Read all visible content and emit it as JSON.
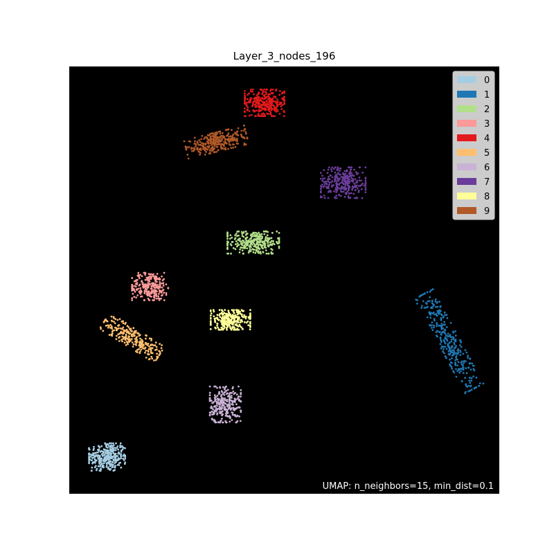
{
  "chart_data": {
    "type": "scatter",
    "title": "Layer_3_nodes_196",
    "annotation": "UMAP: n_neighbors=15, min_dist=0.1",
    "xlabel": "",
    "ylabel": "",
    "xlim": [
      0,
      100
    ],
    "ylim": [
      0,
      100
    ],
    "background": "#000000",
    "grid": false,
    "legend_position": "top-right",
    "series": [
      {
        "name": "0",
        "color": "#a6cee3",
        "center": [
          8.8,
          8.6
        ],
        "spread": [
          4.2,
          3.2
        ],
        "angle": 0,
        "n": 320
      },
      {
        "name": "1",
        "color": "#1f78b4",
        "center": [
          88.3,
          35.7
        ],
        "spread": [
          2.4,
          12.5
        ],
        "angle": 28,
        "n": 320
      },
      {
        "name": "2",
        "color": "#b2df8a",
        "center": [
          42.8,
          58.8
        ],
        "spread": [
          6.0,
          2.6
        ],
        "angle": 0,
        "n": 300
      },
      {
        "name": "3",
        "color": "#fb9a99",
        "center": [
          18.8,
          48.5
        ],
        "spread": [
          4.2,
          3.2
        ],
        "angle": 0,
        "n": 260
      },
      {
        "name": "4",
        "color": "#e31a1c",
        "center": [
          45.4,
          91.5
        ],
        "spread": [
          4.6,
          3.1
        ],
        "angle": 0,
        "n": 320
      },
      {
        "name": "5",
        "color": "#fdbf6f",
        "center": [
          14.6,
          36.5
        ],
        "spread": [
          7.5,
          2.2
        ],
        "angle": -32,
        "n": 260
      },
      {
        "name": "6",
        "color": "#cab2d6",
        "center": [
          36.3,
          20.9
        ],
        "spread": [
          3.6,
          4.2
        ],
        "angle": 0,
        "n": 280
      },
      {
        "name": "7",
        "color": "#6a3d9a",
        "center": [
          63.7,
          72.8
        ],
        "spread": [
          5.2,
          3.6
        ],
        "angle": 0,
        "n": 300
      },
      {
        "name": "8",
        "color": "#ffff99",
        "center": [
          37.5,
          40.7
        ],
        "spread": [
          4.6,
          2.3
        ],
        "angle": 0,
        "n": 280
      },
      {
        "name": "9",
        "color": "#b15928",
        "center": [
          34.2,
          82.3
        ],
        "spread": [
          7.2,
          2.2
        ],
        "angle": 14,
        "n": 300
      }
    ]
  }
}
